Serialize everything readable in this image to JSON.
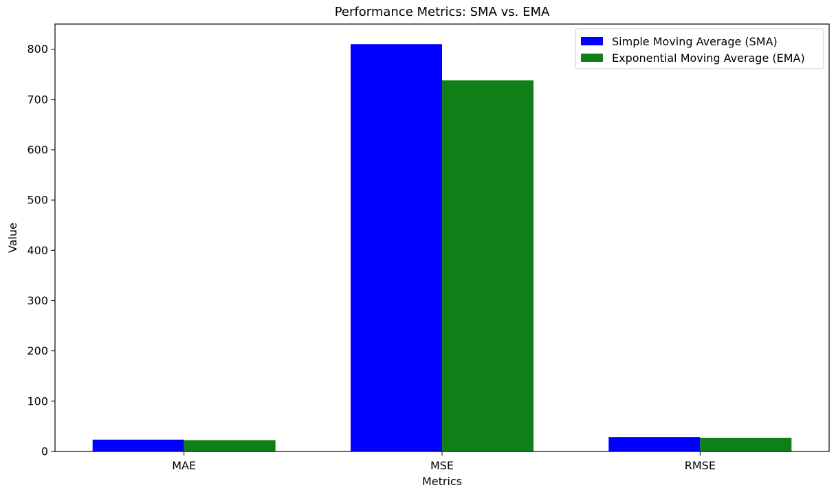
{
  "chart_data": {
    "type": "bar",
    "title": "Performance Metrics: SMA vs. EMA",
    "xlabel": "Metrics",
    "ylabel": "Value",
    "categories": [
      "MAE",
      "MSE",
      "RMSE"
    ],
    "series": [
      {
        "name": "Simple Moving Average (SMA)",
        "color": "#0000ff",
        "values": [
          23.5,
          810,
          28.5
        ]
      },
      {
        "name": "Exponential Moving Average (EMA)",
        "color": "#117f17",
        "values": [
          22.5,
          738,
          27.2
        ]
      }
    ],
    "ylim": [
      0,
      850
    ],
    "yticks": [
      0,
      100,
      200,
      300,
      400,
      500,
      600,
      700,
      800
    ],
    "grid": false,
    "legend_position": "top-right"
  }
}
